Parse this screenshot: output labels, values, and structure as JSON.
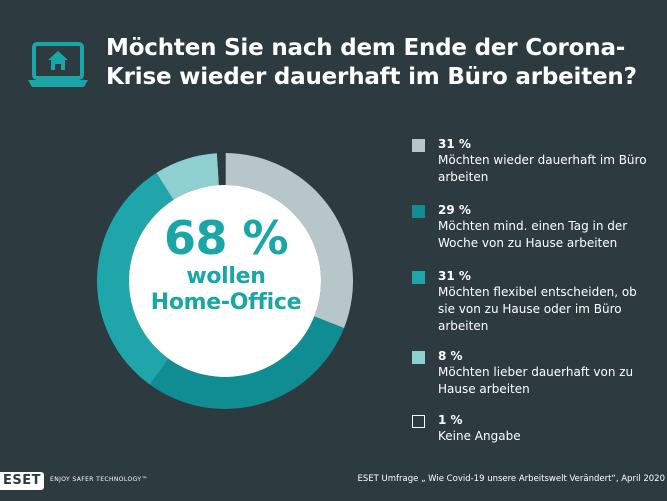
{
  "title": "Möchten Sie nach dem Ende der Corona-Krise wieder dauerhaft im Büro arbeiten?",
  "center": {
    "percent": "68 %",
    "line1": "wollen",
    "line2": "Home-Office"
  },
  "colors": {
    "background": "#2d3a3f",
    "accent": "#1aa6a6"
  },
  "chart_data": {
    "type": "pie",
    "donut": true,
    "title": "Möchten Sie nach dem Ende der Corona-Krise wieder dauerhaft im Büro arbeiten?",
    "categories": [
      "Möchten wieder dauerhaft im Büro arbeiten",
      "Möchten mind. einen Tag in der Woche von zu Hause arbeiten",
      "Möchten flexibel entscheiden, ob sie von zu Hause oder im Büro arbeiten",
      "Möchten lieber dauerhaft von zu Hause arbeiten",
      "Keine Angabe"
    ],
    "values": [
      31,
      29,
      31,
      8,
      1
    ],
    "colors": [
      "#b6c6c9",
      "#0f8d93",
      "#1fa6ab",
      "#8ecfcf",
      "#2d3a3f"
    ],
    "legend_placement": "right"
  },
  "legend": [
    {
      "pct": "31 %",
      "text": "Möchten wieder dauerhaft im Büro arbeiten",
      "color": "#b6c6c9"
    },
    {
      "pct": "29 %",
      "text": "Möchten mind. einen Tag in der Woche von zu Hause arbeiten",
      "color": "#0f8d93"
    },
    {
      "pct": "31 %",
      "text": "Möchten flexibel entscheiden, ob sie von zu Hause oder im Büro arbeiten",
      "color": "#1fa6ab"
    },
    {
      "pct": "8 %",
      "text": "Möchten lieber dauerhaft von zu Hause arbeiten",
      "color": "#8ecfcf"
    },
    {
      "pct": "1 %",
      "text": "Keine Angabe",
      "color": "#2d3a3f"
    }
  ],
  "footer": {
    "logo": "ESET",
    "tagline": "ENJOY SAFER TECHNOLOGY™",
    "source": "ESET Umfrage „ Wie Covid-19 unsere Arbeitswelt Verändert“, April 2020"
  }
}
